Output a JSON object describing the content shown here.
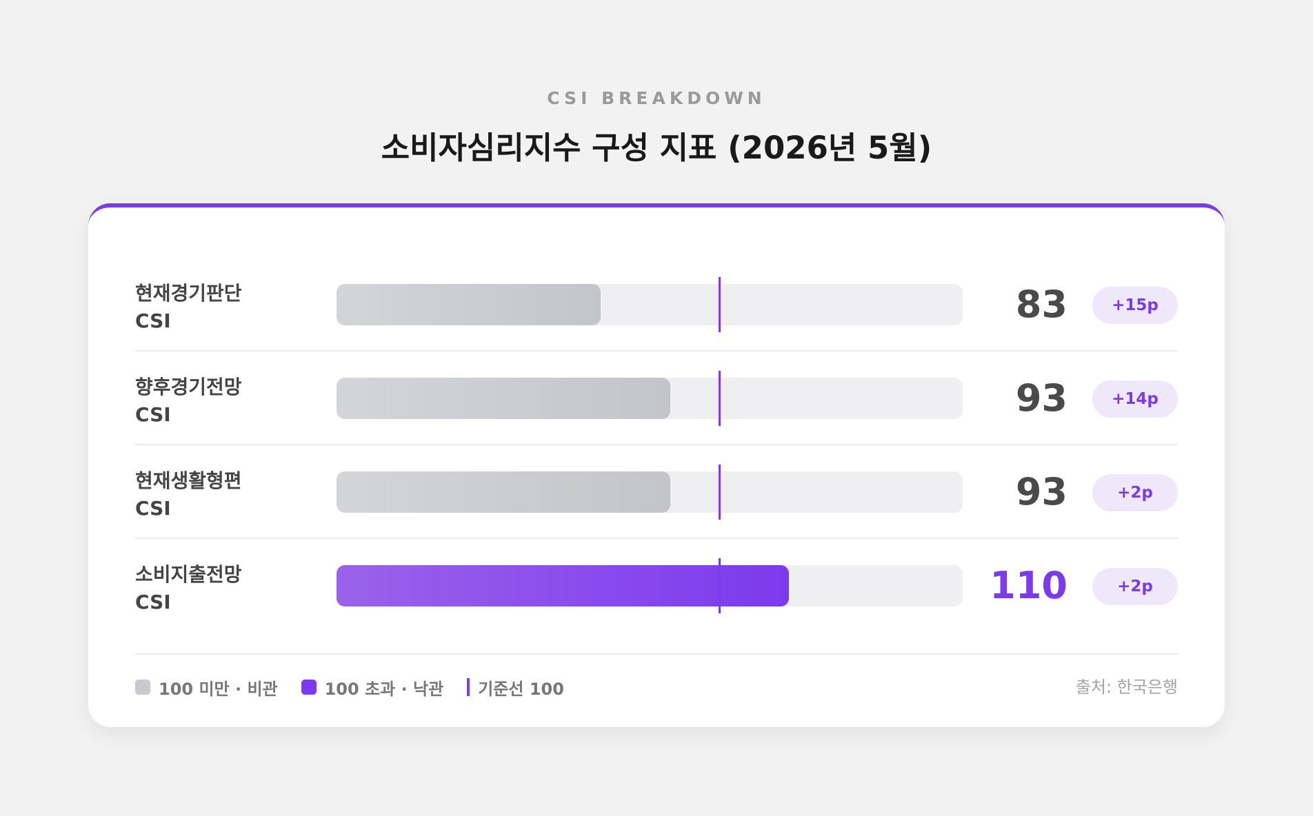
{
  "header": {
    "eyebrow": "CSI BREAKDOWN",
    "title": "소비자심리지수 구성 지표 (2026년 5월)"
  },
  "colors": {
    "accent": "#7c3aed",
    "below_bar": "#c8cacf",
    "track": "#efeff1",
    "badge_bg": "#efe8fb"
  },
  "chart_data": {
    "type": "bar",
    "orientation": "horizontal",
    "categories": [
      "현재경기판단 CSI",
      "향후경기전망 CSI",
      "현재생활형편 CSI",
      "소비지출전망 CSI"
    ],
    "values": [
      83,
      93,
      93,
      110
    ],
    "changes": [
      "+15p",
      "+14p",
      "+2p",
      "+2p"
    ],
    "reference_line": 100,
    "xlim": [
      45,
      135
    ],
    "grid": false
  },
  "rows": [
    {
      "label_line1": "현재경기판단",
      "label_line2": "CSI",
      "value_text": "83",
      "change": "+15p"
    },
    {
      "label_line1": "향후경기전망",
      "label_line2": "CSI",
      "value_text": "93",
      "change": "+14p"
    },
    {
      "label_line1": "현재생활형편",
      "label_line2": "CSI",
      "value_text": "93",
      "change": "+2p"
    },
    {
      "label_line1": "소비지출전망",
      "label_line2": "CSI",
      "value_text": "110",
      "change": "+2p"
    }
  ],
  "legend": {
    "below": "100 미만 · 비관",
    "above": "100 초과 · 낙관",
    "baseline": "기준선 100"
  },
  "source": "출처: 한국은행"
}
